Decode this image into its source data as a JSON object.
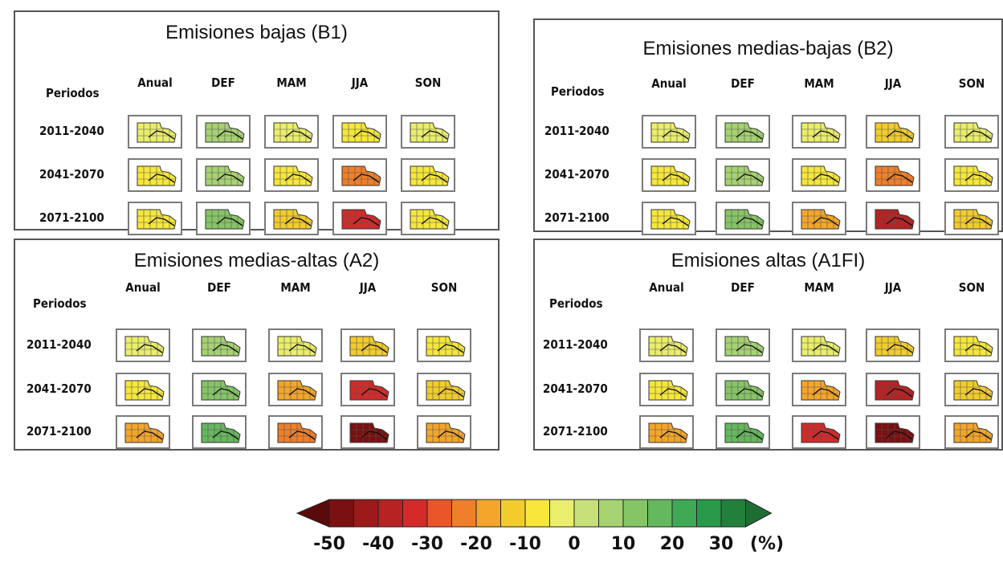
{
  "chart_data": {
    "type": "heatmap",
    "row_header": "Periodos",
    "columns": [
      "Anual",
      "DEF",
      "MAM",
      "JJA",
      "SON"
    ],
    "rows": [
      "2011-2040",
      "2041-2070",
      "2071-2100"
    ],
    "unit": "%",
    "panels": [
      {
        "title": "Emisiones bajas (B1)",
        "values": [
          [
            -5,
            5,
            -5,
            -10,
            -5
          ],
          [
            -10,
            5,
            -10,
            -25,
            -10
          ],
          [
            -10,
            10,
            -15,
            -35,
            -10
          ]
        ]
      },
      {
        "title": "Emisiones medias-bajas (B2)",
        "values": [
          [
            -5,
            5,
            -5,
            -15,
            -5
          ],
          [
            -10,
            5,
            -10,
            -25,
            -10
          ],
          [
            -10,
            10,
            -20,
            -40,
            -15
          ]
        ]
      },
      {
        "title": "Emisiones medias-altas (A2)",
        "values": [
          [
            -5,
            5,
            -5,
            -15,
            -10
          ],
          [
            -10,
            10,
            -20,
            -35,
            -15
          ],
          [
            -20,
            15,
            -25,
            -50,
            -20
          ]
        ]
      },
      {
        "title": "Emisiones altas (A1FI)",
        "values": [
          [
            -5,
            5,
            -5,
            -15,
            -10
          ],
          [
            -10,
            10,
            -20,
            -40,
            -15
          ],
          [
            -20,
            15,
            -35,
            -50,
            -20
          ]
        ]
      }
    ],
    "legend": {
      "min": -50,
      "max": 35,
      "step": 5,
      "tick_labels": [
        "-50",
        "-40",
        "-30",
        "-20",
        "-10",
        "0",
        "10",
        "20",
        "30"
      ],
      "tick_values": [
        -50,
        -40,
        -30,
        -20,
        -10,
        0,
        10,
        20,
        30
      ],
      "unit_label": "(%)",
      "colors": [
        "#7a1010",
        "#9c1a1a",
        "#b82222",
        "#d42a2a",
        "#e8562a",
        "#ef7f2a",
        "#f4a62a",
        "#f2cc2c",
        "#f6e73a",
        "#eaee6a",
        "#c8e07a",
        "#a6d272",
        "#86c566",
        "#66b85e",
        "#3eaa55",
        "#2a9a4a",
        "#237f3c"
      ],
      "lowest_color": "#5a0a0a",
      "highest_color": "#1e6e34"
    }
  }
}
